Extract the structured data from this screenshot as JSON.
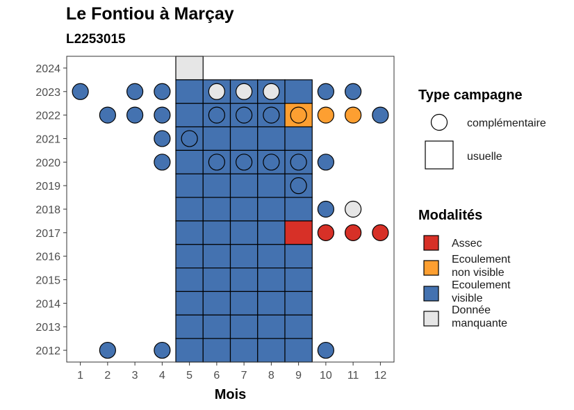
{
  "title": "Le Fontiou à Marçay",
  "subtitle": "L2253015",
  "chart_data": {
    "type": "heatmap",
    "xlabel": "Mois",
    "ylabel": "",
    "x_ticks": [
      "1",
      "2",
      "3",
      "4",
      "5",
      "6",
      "7",
      "8",
      "9",
      "10",
      "11",
      "12"
    ],
    "y_ticks": [
      "2012",
      "2013",
      "2014",
      "2015",
      "2016",
      "2017",
      "2018",
      "2019",
      "2020",
      "2021",
      "2022",
      "2023",
      "2024"
    ],
    "xlim": [
      0.5,
      12.5
    ],
    "ylim": [
      2011.5,
      2024.5
    ],
    "grid": false,
    "legend_position": "right",
    "colors": {
      "Assec": "#d73027",
      "Ecoulement non visible": "#fd9f31",
      "Ecoulement visible": "#4472b0",
      "Donnée manquante": "#e6e6e6"
    },
    "legend": {
      "shape_title": "Type campagne",
      "shape_items": [
        {
          "label": "complémentaire",
          "shape": "circle"
        },
        {
          "label": "usuelle",
          "shape": "square"
        }
      ],
      "fill_title": "Modalités",
      "fill_items": [
        {
          "lines": [
            "Assec"
          ],
          "key": "Assec"
        },
        {
          "lines": [
            "Ecoulement",
            "non visible"
          ],
          "key": "Ecoulement non visible"
        },
        {
          "lines": [
            "Ecoulement",
            "visible"
          ],
          "key": "Ecoulement visible"
        },
        {
          "lines": [
            "Donnée",
            "manquante"
          ],
          "key": "Donnée manquante"
        }
      ]
    },
    "usuelle": [
      {
        "year": 2024,
        "month": 5,
        "status": "Donnée manquante"
      },
      {
        "year": 2023,
        "month": 5,
        "status": "Ecoulement visible"
      },
      {
        "year": 2023,
        "month": 6,
        "status": "Ecoulement visible"
      },
      {
        "year": 2023,
        "month": 7,
        "status": "Ecoulement visible"
      },
      {
        "year": 2023,
        "month": 8,
        "status": "Ecoulement visible"
      },
      {
        "year": 2023,
        "month": 9,
        "status": "Ecoulement visible"
      },
      {
        "year": 2022,
        "month": 5,
        "status": "Ecoulement visible"
      },
      {
        "year": 2022,
        "month": 6,
        "status": "Ecoulement visible"
      },
      {
        "year": 2022,
        "month": 7,
        "status": "Ecoulement visible"
      },
      {
        "year": 2022,
        "month": 8,
        "status": "Ecoulement visible"
      },
      {
        "year": 2022,
        "month": 9,
        "status": "Ecoulement non visible"
      },
      {
        "year": 2021,
        "month": 5,
        "status": "Ecoulement visible"
      },
      {
        "year": 2021,
        "month": 6,
        "status": "Ecoulement visible"
      },
      {
        "year": 2021,
        "month": 7,
        "status": "Ecoulement visible"
      },
      {
        "year": 2021,
        "month": 8,
        "status": "Ecoulement visible"
      },
      {
        "year": 2021,
        "month": 9,
        "status": "Ecoulement visible"
      },
      {
        "year": 2020,
        "month": 5,
        "status": "Ecoulement visible"
      },
      {
        "year": 2020,
        "month": 6,
        "status": "Ecoulement visible"
      },
      {
        "year": 2020,
        "month": 7,
        "status": "Ecoulement visible"
      },
      {
        "year": 2020,
        "month": 8,
        "status": "Ecoulement visible"
      },
      {
        "year": 2020,
        "month": 9,
        "status": "Ecoulement visible"
      },
      {
        "year": 2019,
        "month": 5,
        "status": "Ecoulement visible"
      },
      {
        "year": 2019,
        "month": 6,
        "status": "Ecoulement visible"
      },
      {
        "year": 2019,
        "month": 7,
        "status": "Ecoulement visible"
      },
      {
        "year": 2019,
        "month": 8,
        "status": "Ecoulement visible"
      },
      {
        "year": 2019,
        "month": 9,
        "status": "Ecoulement visible"
      },
      {
        "year": 2018,
        "month": 5,
        "status": "Ecoulement visible"
      },
      {
        "year": 2018,
        "month": 6,
        "status": "Ecoulement visible"
      },
      {
        "year": 2018,
        "month": 7,
        "status": "Ecoulement visible"
      },
      {
        "year": 2018,
        "month": 8,
        "status": "Ecoulement visible"
      },
      {
        "year": 2018,
        "month": 9,
        "status": "Ecoulement visible"
      },
      {
        "year": 2017,
        "month": 5,
        "status": "Ecoulement visible"
      },
      {
        "year": 2017,
        "month": 6,
        "status": "Ecoulement visible"
      },
      {
        "year": 2017,
        "month": 7,
        "status": "Ecoulement visible"
      },
      {
        "year": 2017,
        "month": 8,
        "status": "Ecoulement visible"
      },
      {
        "year": 2017,
        "month": 9,
        "status": "Assec"
      },
      {
        "year": 2016,
        "month": 5,
        "status": "Ecoulement visible"
      },
      {
        "year": 2016,
        "month": 6,
        "status": "Ecoulement visible"
      },
      {
        "year": 2016,
        "month": 7,
        "status": "Ecoulement visible"
      },
      {
        "year": 2016,
        "month": 8,
        "status": "Ecoulement visible"
      },
      {
        "year": 2016,
        "month": 9,
        "status": "Ecoulement visible"
      },
      {
        "year": 2015,
        "month": 5,
        "status": "Ecoulement visible"
      },
      {
        "year": 2015,
        "month": 6,
        "status": "Ecoulement visible"
      },
      {
        "year": 2015,
        "month": 7,
        "status": "Ecoulement visible"
      },
      {
        "year": 2015,
        "month": 8,
        "status": "Ecoulement visible"
      },
      {
        "year": 2015,
        "month": 9,
        "status": "Ecoulement visible"
      },
      {
        "year": 2014,
        "month": 5,
        "status": "Ecoulement visible"
      },
      {
        "year": 2014,
        "month": 6,
        "status": "Ecoulement visible"
      },
      {
        "year": 2014,
        "month": 7,
        "status": "Ecoulement visible"
      },
      {
        "year": 2014,
        "month": 8,
        "status": "Ecoulement visible"
      },
      {
        "year": 2014,
        "month": 9,
        "status": "Ecoulement visible"
      },
      {
        "year": 2013,
        "month": 5,
        "status": "Ecoulement visible"
      },
      {
        "year": 2013,
        "month": 6,
        "status": "Ecoulement visible"
      },
      {
        "year": 2013,
        "month": 7,
        "status": "Ecoulement visible"
      },
      {
        "year": 2013,
        "month": 8,
        "status": "Ecoulement visible"
      },
      {
        "year": 2013,
        "month": 9,
        "status": "Ecoulement visible"
      },
      {
        "year": 2012,
        "month": 5,
        "status": "Ecoulement visible"
      },
      {
        "year": 2012,
        "month": 6,
        "status": "Ecoulement visible"
      },
      {
        "year": 2012,
        "month": 7,
        "status": "Ecoulement visible"
      },
      {
        "year": 2012,
        "month": 8,
        "status": "Ecoulement visible"
      },
      {
        "year": 2012,
        "month": 9,
        "status": "Ecoulement visible"
      }
    ],
    "complementaire": [
      {
        "year": 2023,
        "month": 1,
        "status": "Ecoulement visible"
      },
      {
        "year": 2023,
        "month": 3,
        "status": "Ecoulement visible"
      },
      {
        "year": 2023,
        "month": 4,
        "status": "Ecoulement visible"
      },
      {
        "year": 2023,
        "month": 6,
        "status": "Donnée manquante"
      },
      {
        "year": 2023,
        "month": 7,
        "status": "Donnée manquante"
      },
      {
        "year": 2023,
        "month": 8,
        "status": "Donnée manquante"
      },
      {
        "year": 2023,
        "month": 10,
        "status": "Ecoulement visible"
      },
      {
        "year": 2023,
        "month": 11,
        "status": "Ecoulement visible"
      },
      {
        "year": 2022,
        "month": 2,
        "status": "Ecoulement visible"
      },
      {
        "year": 2022,
        "month": 3,
        "status": "Ecoulement visible"
      },
      {
        "year": 2022,
        "month": 4,
        "status": "Ecoulement visible"
      },
      {
        "year": 2022,
        "month": 6,
        "status": "Ecoulement visible"
      },
      {
        "year": 2022,
        "month": 7,
        "status": "Ecoulement visible"
      },
      {
        "year": 2022,
        "month": 8,
        "status": "Ecoulement visible"
      },
      {
        "year": 2022,
        "month": 9,
        "status": "Ecoulement non visible"
      },
      {
        "year": 2022,
        "month": 10,
        "status": "Ecoulement non visible"
      },
      {
        "year": 2022,
        "month": 11,
        "status": "Ecoulement non visible"
      },
      {
        "year": 2022,
        "month": 12,
        "status": "Ecoulement visible"
      },
      {
        "year": 2021,
        "month": 4,
        "status": "Ecoulement visible"
      },
      {
        "year": 2021,
        "month": 5,
        "status": "Ecoulement visible"
      },
      {
        "year": 2020,
        "month": 4,
        "status": "Ecoulement visible"
      },
      {
        "year": 2020,
        "month": 6,
        "status": "Ecoulement visible"
      },
      {
        "year": 2020,
        "month": 7,
        "status": "Ecoulement visible"
      },
      {
        "year": 2020,
        "month": 8,
        "status": "Ecoulement visible"
      },
      {
        "year": 2020,
        "month": 9,
        "status": "Ecoulement visible"
      },
      {
        "year": 2020,
        "month": 10,
        "status": "Ecoulement visible"
      },
      {
        "year": 2019,
        "month": 9,
        "status": "Ecoulement visible"
      },
      {
        "year": 2018,
        "month": 10,
        "status": "Ecoulement visible"
      },
      {
        "year": 2018,
        "month": 11,
        "status": "Donnée manquante"
      },
      {
        "year": 2017,
        "month": 10,
        "status": "Assec"
      },
      {
        "year": 2017,
        "month": 11,
        "status": "Assec"
      },
      {
        "year": 2017,
        "month": 12,
        "status": "Assec"
      },
      {
        "year": 2012,
        "month": 2,
        "status": "Ecoulement visible"
      },
      {
        "year": 2012,
        "month": 4,
        "status": "Ecoulement visible"
      },
      {
        "year": 2012,
        "month": 10,
        "status": "Ecoulement visible"
      }
    ]
  }
}
